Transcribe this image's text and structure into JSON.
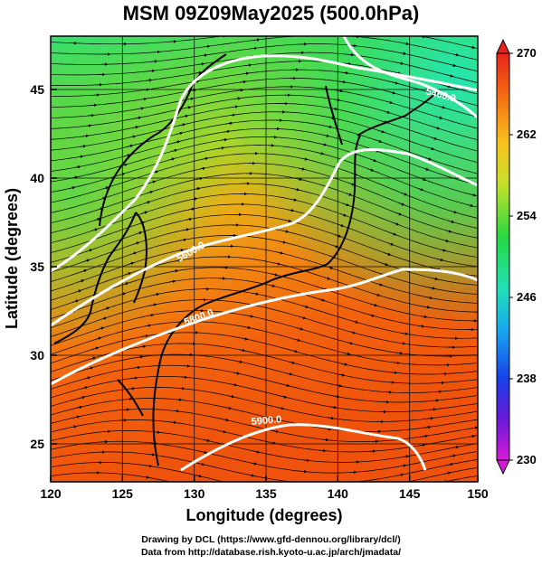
{
  "title": "MSM 09Z09May2025 (500.0hPa)",
  "x_axis": {
    "label": "Longitude (degrees)",
    "range": [
      120,
      150
    ],
    "ticks": [
      "120",
      "125",
      "130",
      "135",
      "140",
      "145",
      "150"
    ]
  },
  "y_axis": {
    "label": "Latitude  (degrees)",
    "range": [
      22.5,
      47.6
    ],
    "ticks": [
      "25",
      "30",
      "35",
      "40",
      "45"
    ]
  },
  "colorbar": {
    "min": 230,
    "max": 270,
    "ticks": [
      "270",
      "262",
      "254",
      "246",
      "238",
      "230"
    ]
  },
  "contour_labels": [
    "5400.0",
    "5600.0",
    "5800.0",
    "5900.0"
  ],
  "credits": {
    "line1": "Drawing by DCL (https://www.gfd-dennou.org/library/dcl/)",
    "line2": "Data from http://database.rish.kyoto-u.ac.jp/arch/jmadata/"
  }
}
